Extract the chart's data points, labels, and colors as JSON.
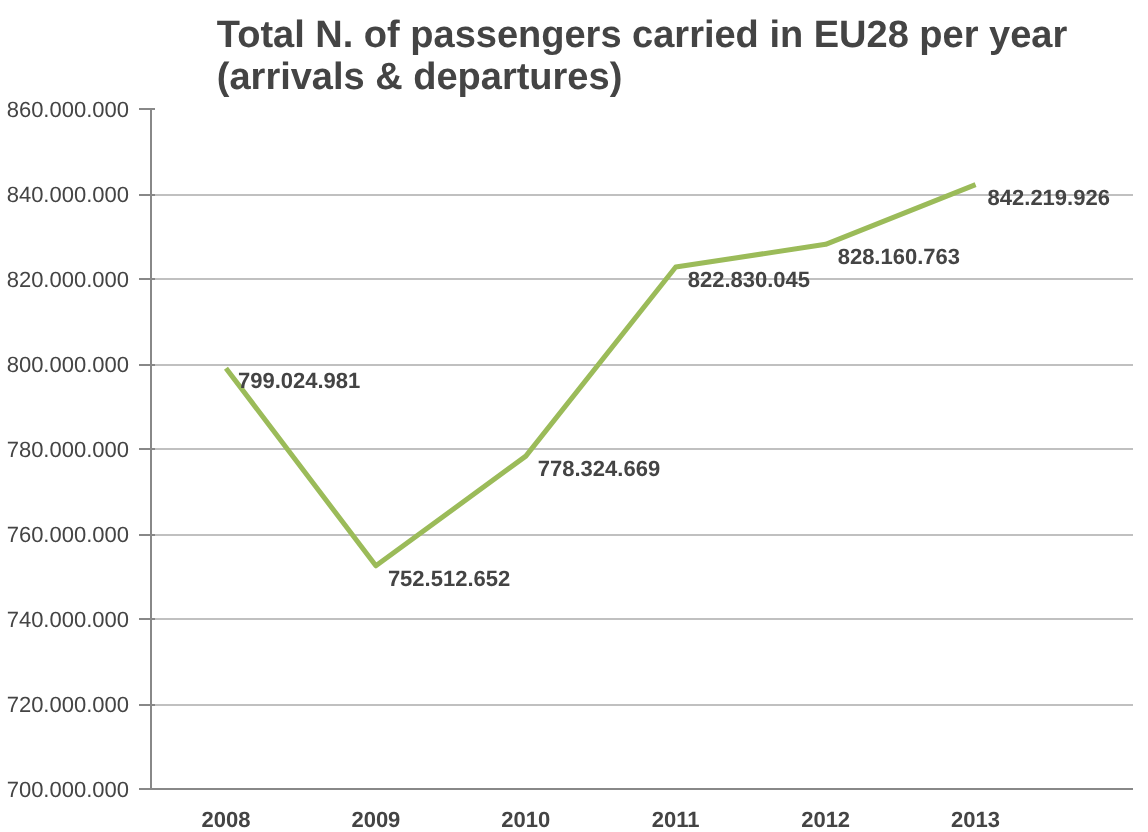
{
  "chart_data": {
    "type": "line",
    "title": "Total N. of passengers carried in EU28 per year\n(arrivals & departures)",
    "categories": [
      "2008",
      "2009",
      "2010",
      "2011",
      "2012",
      "2013"
    ],
    "series": [
      {
        "color": "#9bbb59",
        "values": [
          799024981,
          752512652,
          778324669,
          822830045,
          828160763,
          842219926
        ],
        "value_labels": [
          "799.024.981",
          "752.512.652",
          "778.324.669",
          "822.830.045",
          "828.160.763",
          "842.219.926"
        ]
      }
    ],
    "ylim": [
      700000000,
      860000000
    ],
    "yticks": [
      {
        "value": 700000000,
        "label": "700.000.000"
      },
      {
        "value": 720000000,
        "label": "720.000.000"
      },
      {
        "value": 740000000,
        "label": "740.000.000"
      },
      {
        "value": 760000000,
        "label": "760.000.000"
      },
      {
        "value": 780000000,
        "label": "780.000.000"
      },
      {
        "value": 800000000,
        "label": "800.000.000"
      },
      {
        "value": 820000000,
        "label": "820.000.000"
      },
      {
        "value": 840000000,
        "label": "840.000.000"
      },
      {
        "value": 860000000,
        "label": "860.000.000"
      }
    ],
    "grid": "y",
    "marker": "none",
    "line_style": "solid"
  }
}
